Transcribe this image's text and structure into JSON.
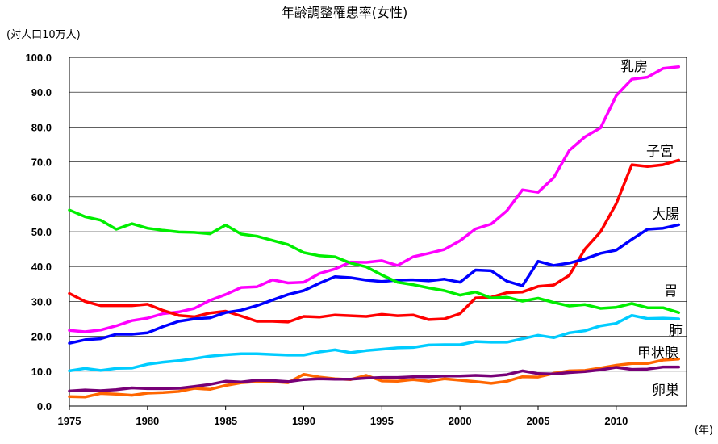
{
  "chart_data": {
    "type": "line",
    "title": "年齢調整罹患率(女性)",
    "ylabel": "(対人口10万人)",
    "xlabel": "(年)",
    "xlim": [
      1975,
      2014
    ],
    "ylim": [
      0,
      100
    ],
    "grid": true,
    "x_ticks": [
      "1975",
      "1980",
      "1985",
      "1990",
      "1995",
      "2000",
      "2005",
      "2010"
    ],
    "y_ticks": [
      "0.0",
      "10.0",
      "20.0",
      "30.0",
      "40.0",
      "50.0",
      "60.0",
      "70.0",
      "80.0",
      "90.0",
      "100.0"
    ],
    "x": [
      1975,
      1976,
      1977,
      1978,
      1979,
      1980,
      1981,
      1982,
      1983,
      1984,
      1985,
      1986,
      1987,
      1988,
      1989,
      1990,
      1991,
      1992,
      1993,
      1994,
      1995,
      1996,
      1997,
      1998,
      1999,
      2000,
      2001,
      2002,
      2003,
      2004,
      2005,
      2006,
      2007,
      2008,
      2009,
      2010,
      2011,
      2012,
      2013,
      2014
    ],
    "series": [
      {
        "name": "乳房",
        "color": "#ff00ff",
        "values": [
          21.7,
          21.3,
          21.8,
          23.0,
          24.5,
          25.2,
          26.5,
          27.0,
          28.0,
          30.3,
          32.0,
          34.0,
          34.2,
          36.2,
          35.3,
          35.5,
          38.0,
          39.3,
          41.3,
          41.2,
          41.7,
          40.3,
          42.8,
          43.8,
          44.9,
          47.4,
          50.8,
          52.2,
          56.0,
          62.0,
          61.3,
          65.5,
          73.3,
          77.2,
          79.8,
          89.0,
          93.7,
          94.3,
          96.8,
          97.3
        ]
      },
      {
        "name": "子宮",
        "color": "#ff0000",
        "values": [
          32.3,
          30.0,
          28.8,
          28.8,
          28.8,
          29.2,
          27.4,
          26.0,
          25.6,
          26.7,
          27.2,
          25.8,
          24.3,
          24.3,
          24.1,
          25.7,
          25.5,
          26.1,
          25.9,
          25.7,
          26.3,
          25.9,
          26.1,
          24.8,
          25.0,
          26.5,
          31.0,
          31.2,
          32.5,
          32.7,
          34.3,
          34.7,
          37.5,
          45.0,
          50.0,
          58.0,
          69.2,
          68.7,
          69.2,
          70.5
        ]
      },
      {
        "name": "大腸",
        "color": "#0000ff",
        "values": [
          18.0,
          19.0,
          19.3,
          20.6,
          20.6,
          21.0,
          22.8,
          24.3,
          25.0,
          25.3,
          26.8,
          27.5,
          28.8,
          30.4,
          32.0,
          33.1,
          35.2,
          37.1,
          36.8,
          36.1,
          35.7,
          36.1,
          36.2,
          35.9,
          36.4,
          35.5,
          39.0,
          38.8,
          35.8,
          34.5,
          41.5,
          40.3,
          41.0,
          42.2,
          43.8,
          44.7,
          47.8,
          50.7,
          51.0,
          52.0
        ]
      },
      {
        "name": "胃",
        "color": "#00ee00",
        "values": [
          56.2,
          54.3,
          53.3,
          50.7,
          52.3,
          51.0,
          50.4,
          49.9,
          49.8,
          49.4,
          51.9,
          49.3,
          48.7,
          47.5,
          46.3,
          44.0,
          43.1,
          42.8,
          41.0,
          39.9,
          37.6,
          35.5,
          34.8,
          33.9,
          33.1,
          31.8,
          32.7,
          31.0,
          31.2,
          30.1,
          30.9,
          29.7,
          28.7,
          29.1,
          28.0,
          28.3,
          29.4,
          28.2,
          28.2,
          26.8
        ]
      },
      {
        "name": "肺",
        "color": "#00ccff",
        "values": [
          10.1,
          10.8,
          10.2,
          10.8,
          10.9,
          12.0,
          12.6,
          13.0,
          13.6,
          14.3,
          14.7,
          15.0,
          15.0,
          14.8,
          14.6,
          14.6,
          15.5,
          16.1,
          15.3,
          15.9,
          16.3,
          16.7,
          16.8,
          17.5,
          17.6,
          17.6,
          18.5,
          18.3,
          18.3,
          19.3,
          20.3,
          19.6,
          21.0,
          21.6,
          23.0,
          23.7,
          26.0,
          25.1,
          25.2,
          25.0
        ]
      },
      {
        "name": "甲状腺",
        "color": "#ff6600",
        "values": [
          2.7,
          2.6,
          3.6,
          3.4,
          3.1,
          3.7,
          3.9,
          4.2,
          5.1,
          4.8,
          5.9,
          6.7,
          7.0,
          7.0,
          6.7,
          9.1,
          8.3,
          7.8,
          7.6,
          8.8,
          7.2,
          7.1,
          7.6,
          7.1,
          7.8,
          7.4,
          7.0,
          6.5,
          7.1,
          8.4,
          8.3,
          9.4,
          10.1,
          10.2,
          10.9,
          11.7,
          12.2,
          12.2,
          13.2,
          13.5
        ]
      },
      {
        "name": "卵巣",
        "color": "#770077",
        "values": [
          4.3,
          4.6,
          4.4,
          4.7,
          5.2,
          5.0,
          5.0,
          5.1,
          5.6,
          6.2,
          7.1,
          6.9,
          7.4,
          7.3,
          7.0,
          7.6,
          7.8,
          7.7,
          7.7,
          8.0,
          8.2,
          8.2,
          8.4,
          8.4,
          8.6,
          8.6,
          8.8,
          8.6,
          9.0,
          10.1,
          9.3,
          9.2,
          9.6,
          9.9,
          10.4,
          11.1,
          10.5,
          10.6,
          11.2,
          11.2
        ]
      }
    ]
  }
}
